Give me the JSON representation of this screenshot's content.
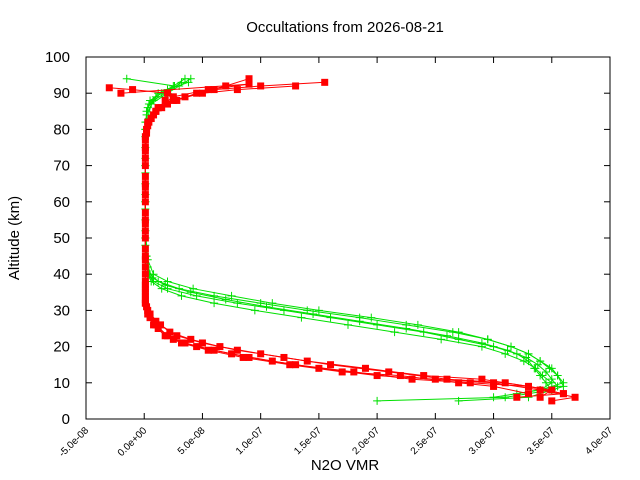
{
  "chart_data": {
    "type": "line",
    "title": "Occultations from 2026-08-21",
    "xlabel": "N2O VMR",
    "ylabel": "Altitude (km)",
    "xlim": [
      -5e-08,
      4e-07
    ],
    "ylim": [
      0,
      100
    ],
    "grid": false,
    "legend": "none",
    "x_ticks": [
      {
        "value": -5e-08,
        "label": "-5.0e-08"
      },
      {
        "value": 0,
        "label": "0.0e+00"
      },
      {
        "value": 5e-08,
        "label": "5.0e-08"
      },
      {
        "value": 1e-07,
        "label": "1.0e-07"
      },
      {
        "value": 1.5e-07,
        "label": "1.5e-07"
      },
      {
        "value": 2e-07,
        "label": "2.0e-07"
      },
      {
        "value": 2.5e-07,
        "label": "2.5e-07"
      },
      {
        "value": 3e-07,
        "label": "3.0e-07"
      },
      {
        "value": 3.5e-07,
        "label": "3.5e-07"
      },
      {
        "value": 4e-07,
        "label": "4.0e-07"
      }
    ],
    "y_ticks": [
      {
        "value": 0,
        "label": "0"
      },
      {
        "value": 10,
        "label": "10"
      },
      {
        "value": 20,
        "label": "20"
      },
      {
        "value": 30,
        "label": "30"
      },
      {
        "value": 40,
        "label": "40"
      },
      {
        "value": 50,
        "label": "50"
      },
      {
        "value": 60,
        "label": "60"
      },
      {
        "value": 70,
        "label": "70"
      },
      {
        "value": 80,
        "label": "80"
      },
      {
        "value": 90,
        "label": "90"
      },
      {
        "value": 100,
        "label": "100"
      }
    ],
    "series": [
      {
        "color": "#00e000",
        "marker": "plus",
        "profiles": [
          [
            [
              2e-07,
              5
            ],
            [
              3.1e-07,
              6
            ],
            [
              3.5e-07,
              8
            ],
            [
              3.45e-07,
              10
            ],
            [
              3.4e-07,
              12
            ],
            [
              3.35e-07,
              14
            ],
            [
              3.3e-07,
              16
            ],
            [
              3.2e-07,
              18
            ],
            [
              3e-07,
              20
            ],
            [
              2.7e-07,
              22
            ],
            [
              2.4e-07,
              24
            ],
            [
              2e-07,
              26
            ],
            [
              1.6e-07,
              28
            ],
            [
              1.2e-07,
              30
            ],
            [
              8e-08,
              32
            ],
            [
              4.5e-08,
              34
            ],
            [
              2e-08,
              36
            ],
            [
              8e-09,
              38
            ],
            [
              4e-09,
              40
            ],
            [
              2e-09,
              45
            ],
            [
              1e-09,
              50
            ],
            [
              1e-09,
              60
            ],
            [
              1e-09,
              70
            ],
            [
              1e-09,
              80
            ],
            [
              2e-09,
              85
            ],
            [
              5e-09,
              88
            ],
            [
              1.5e-08,
              90
            ],
            [
              2.5e-08,
              92
            ],
            [
              3.5e-08,
              94
            ]
          ],
          [
            [
              2.7e-07,
              5
            ],
            [
              3.3e-07,
              6
            ],
            [
              3.6e-07,
              9
            ],
            [
              3.55e-07,
              12
            ],
            [
              3.5e-07,
              14
            ],
            [
              3.4e-07,
              16
            ],
            [
              3.3e-07,
              18
            ],
            [
              3.15e-07,
              20
            ],
            [
              2.95e-07,
              22
            ],
            [
              2.65e-07,
              24
            ],
            [
              2.25e-07,
              26
            ],
            [
              1.85e-07,
              28
            ],
            [
              1.4e-07,
              30
            ],
            [
              1e-07,
              32
            ],
            [
              6e-08,
              34
            ],
            [
              3e-08,
              36
            ],
            [
              1.2e-08,
              38
            ],
            [
              5e-09,
              40
            ],
            [
              2e-09,
              45
            ],
            [
              1e-09,
              55
            ],
            [
              1e-09,
              65
            ],
            [
              1e-09,
              75
            ],
            [
              2e-09,
              82
            ],
            [
              6e-09,
              87
            ],
            [
              2e-08,
              90
            ],
            [
              3e-08,
              92
            ],
            [
              4e-08,
              94
            ]
          ],
          [
            [
              3.2e-07,
              7
            ],
            [
              3.55e-07,
              9
            ],
            [
              3.5e-07,
              11
            ],
            [
              3.45e-07,
              13
            ],
            [
              3.38e-07,
              15
            ],
            [
              3.28e-07,
              17
            ],
            [
              3.12e-07,
              19
            ],
            [
              2.9e-07,
              21
            ],
            [
              2.6e-07,
              23
            ],
            [
              2.25e-07,
              25
            ],
            [
              1.85e-07,
              27
            ],
            [
              1.45e-07,
              29
            ],
            [
              1.05e-07,
              31
            ],
            [
              7e-08,
              33
            ],
            [
              4e-08,
              35
            ],
            [
              1.8e-08,
              37
            ],
            [
              7e-09,
              39
            ],
            [
              3e-09,
              42
            ],
            [
              1e-09,
              50
            ],
            [
              1e-09,
              60
            ],
            [
              1e-09,
              70
            ],
            [
              1e-09,
              80
            ],
            [
              3e-09,
              86
            ],
            [
              1e-08,
              89
            ],
            [
              2e-08,
              91
            ],
            [
              3.8e-08,
              93
            ]
          ],
          [
            [
              3e-07,
              6
            ],
            [
              3.4e-07,
              8
            ],
            [
              3.5e-07,
              10
            ],
            [
              3.42e-07,
              12
            ],
            [
              3.36e-07,
              14
            ],
            [
              3.26e-07,
              16
            ],
            [
              3.1e-07,
              18
            ],
            [
              2.9e-07,
              20
            ],
            [
              2.55e-07,
              22
            ],
            [
              2.15e-07,
              24
            ],
            [
              1.75e-07,
              26
            ],
            [
              1.35e-07,
              28
            ],
            [
              9.5e-08,
              30
            ],
            [
              6e-08,
              32
            ],
            [
              3.2e-08,
              34
            ],
            [
              1.5e-08,
              36
            ],
            [
              6e-09,
              38
            ],
            [
              3e-09,
              40
            ],
            [
              1e-09,
              48
            ],
            [
              1e-09,
              58
            ],
            [
              1e-09,
              68
            ],
            [
              1e-09,
              78
            ],
            [
              2e-09,
              84
            ],
            [
              8e-09,
              88
            ],
            [
              1.8e-08,
              90
            ],
            [
              3.2e-08,
              93
            ]
          ],
          [
            [
              3.4e-07,
              8
            ],
            [
              3.6e-07,
              10
            ],
            [
              3.55e-07,
              12
            ],
            [
              3.48e-07,
              14
            ],
            [
              3.4e-07,
              16
            ],
            [
              3.3e-07,
              18
            ],
            [
              3.15e-07,
              20
            ],
            [
              2.95e-07,
              22
            ],
            [
              2.7e-07,
              24
            ],
            [
              2.35e-07,
              26
            ],
            [
              1.95e-07,
              28
            ],
            [
              1.5e-07,
              30
            ],
            [
              1.1e-07,
              32
            ],
            [
              7.5e-08,
              34
            ],
            [
              4.2e-08,
              36
            ],
            [
              2e-08,
              38
            ],
            [
              8e-09,
              40
            ],
            [
              3e-09,
              44
            ],
            [
              1e-09,
              52
            ],
            [
              1e-09,
              62
            ],
            [
              1e-09,
              72
            ],
            [
              1e-09,
              82
            ],
            [
              4e-09,
              87
            ],
            [
              1.2e-08,
              90
            ],
            [
              2.6e-08,
              92
            ],
            [
              -1.5e-08,
              94
            ]
          ]
        ]
      },
      {
        "color": "#ff0000",
        "marker": "square",
        "profiles": [
          [
            [
              3.5e-07,
              5
            ],
            [
              3.7e-07,
              6
            ],
            [
              3.4e-07,
              8
            ],
            [
              3e-07,
              10
            ],
            [
              2.5e-07,
              11
            ],
            [
              2e-07,
              12
            ],
            [
              1.5e-07,
              14
            ],
            [
              1.1e-07,
              16
            ],
            [
              7.5e-08,
              18
            ],
            [
              4.5e-08,
              20
            ],
            [
              2.5e-08,
              22
            ],
            [
              1.2e-08,
              25
            ],
            [
              5e-09,
              28
            ],
            [
              2e-09,
              31
            ],
            [
              1e-09,
              35
            ],
            [
              1e-09,
              40
            ],
            [
              1e-09,
              50
            ],
            [
              1e-09,
              60
            ],
            [
              1e-09,
              70
            ],
            [
              1e-09,
              78
            ],
            [
              3e-09,
              82
            ],
            [
              1e-08,
              85
            ],
            [
              2e-08,
              87
            ],
            [
              3.5e-08,
              89
            ],
            [
              6e-08,
              91
            ],
            [
              1e-07,
              92
            ],
            [
              1.55e-07,
              93
            ]
          ],
          [
            [
              3.2e-07,
              6
            ],
            [
              3.6e-07,
              7
            ],
            [
              3.3e-07,
              9
            ],
            [
              2.8e-07,
              10
            ],
            [
              2.3e-07,
              11
            ],
            [
              1.8e-07,
              13
            ],
            [
              1.3e-07,
              15
            ],
            [
              9e-08,
              17
            ],
            [
              6e-08,
              19
            ],
            [
              3.5e-08,
              21
            ],
            [
              2e-08,
              23
            ],
            [
              1e-08,
              26
            ],
            [
              4e-09,
              29
            ],
            [
              1e-09,
              33
            ],
            [
              1e-09,
              38
            ],
            [
              1e-09,
              45
            ],
            [
              1e-09,
              55
            ],
            [
              1e-09,
              65
            ],
            [
              1e-09,
              75
            ],
            [
              2e-09,
              80
            ],
            [
              8e-09,
              84
            ],
            [
              1.5e-08,
              86
            ],
            [
              2.5e-08,
              88
            ],
            [
              5e-08,
              90
            ],
            [
              8e-08,
              91
            ],
            [
              1.3e-07,
              92
            ]
          ],
          [
            [
              3.6e-07,
              7
            ],
            [
              3.3e-07,
              9
            ],
            [
              2.9e-07,
              11
            ],
            [
              2.4e-07,
              12
            ],
            [
              1.9e-07,
              14
            ],
            [
              1.4e-07,
              16
            ],
            [
              1e-07,
              18
            ],
            [
              6.5e-08,
              20
            ],
            [
              4e-08,
              22
            ],
            [
              2.2e-08,
              24
            ],
            [
              1e-08,
              27
            ],
            [
              3e-09,
              30
            ],
            [
              1e-09,
              34
            ],
            [
              1e-09,
              42
            ],
            [
              1e-09,
              52
            ],
            [
              1e-09,
              62
            ],
            [
              1e-09,
              72
            ],
            [
              2e-09,
              79
            ],
            [
              6e-09,
              83
            ],
            [
              1.2e-08,
              86
            ],
            [
              2.8e-08,
              88
            ],
            [
              4.5e-08,
              90
            ],
            [
              7e-08,
              92
            ],
            [
              9e-08,
              94
            ]
          ],
          [
            [
              3.4e-07,
              6
            ],
            [
              3.5e-07,
              8
            ],
            [
              3.1e-07,
              10
            ],
            [
              2.6e-07,
              11
            ],
            [
              2.1e-07,
              13
            ],
            [
              1.6e-07,
              15
            ],
            [
              1.2e-07,
              17
            ],
            [
              8e-08,
              19
            ],
            [
              5e-08,
              21
            ],
            [
              2.8e-08,
              23
            ],
            [
              1.4e-08,
              26
            ],
            [
              5e-09,
              29
            ],
            [
              1e-09,
              32
            ],
            [
              1e-09,
              36
            ],
            [
              1e-09,
              44
            ],
            [
              1e-09,
              54
            ],
            [
              1e-09,
              64
            ],
            [
              1e-09,
              74
            ],
            [
              3e-09,
              81
            ],
            [
              1e-08,
              85
            ],
            [
              1.8e-08,
              88
            ],
            [
              2e-08,
              90
            ],
            [
              -1e-08,
              91
            ],
            [
              -3e-08,
              91.5
            ]
          ],
          [
            [
              3.3e-07,
              7
            ],
            [
              3e-07,
              9
            ],
            [
              2.7e-07,
              10
            ],
            [
              2.2e-07,
              12
            ],
            [
              1.7e-07,
              13
            ],
            [
              1.25e-07,
              15
            ],
            [
              8.5e-08,
              17
            ],
            [
              5.5e-08,
              19
            ],
            [
              3.2e-08,
              21
            ],
            [
              1.8e-08,
              23
            ],
            [
              8e-09,
              26
            ],
            [
              3e-09,
              29
            ],
            [
              1e-09,
              32
            ],
            [
              1e-09,
              37
            ],
            [
              1e-09,
              47
            ],
            [
              1e-09,
              57
            ],
            [
              1e-09,
              67
            ],
            [
              1e-09,
              77
            ],
            [
              4e-09,
              82
            ],
            [
              1.2e-08,
              86
            ],
            [
              2.5e-08,
              89
            ],
            [
              5.5e-08,
              91
            ],
            [
              9e-08,
              92.5
            ],
            [
              -2e-08,
              90
            ]
          ]
        ]
      }
    ]
  }
}
